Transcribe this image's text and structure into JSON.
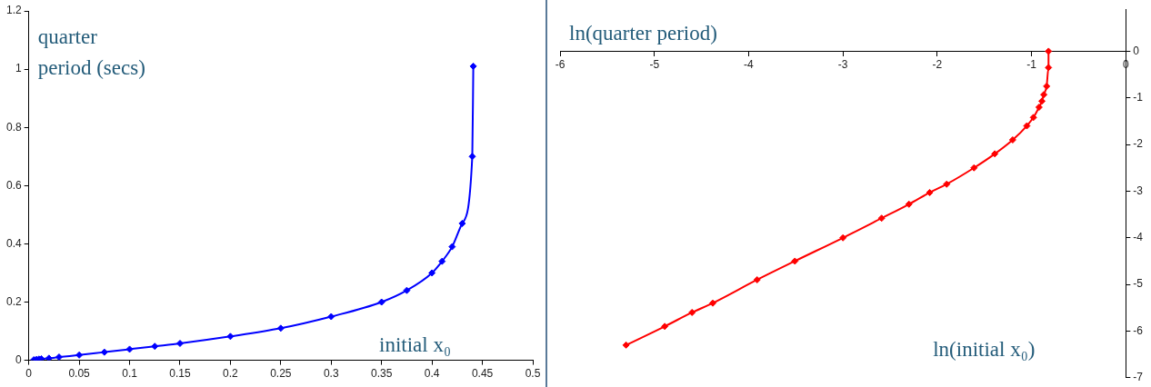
{
  "chart_data": [
    {
      "type": "line",
      "xlabel": "initial x₀",
      "ylabel": "quarter\nperiod (secs)",
      "xlim": [
        0,
        0.5
      ],
      "ylim": [
        0,
        1.2
      ],
      "xticks": [
        0,
        0.05,
        0.1,
        0.15,
        0.2,
        0.25,
        0.3,
        0.35,
        0.4,
        0.45,
        0.5
      ],
      "yticks": [
        0,
        0.2,
        0.4,
        0.6,
        0.8,
        1,
        1.2
      ],
      "grid": false,
      "legend": false,
      "marker": "diamond",
      "line_style": "solid",
      "series": [
        {
          "color": "#0000ff",
          "x": [
            0.005,
            0.0075,
            0.01,
            0.0125,
            0.02,
            0.03,
            0.05,
            0.075,
            0.1,
            0.125,
            0.15,
            0.2,
            0.25,
            0.3,
            0.35,
            0.375,
            0.4,
            0.41,
            0.42,
            0.43,
            0.44,
            0.441
          ],
          "values": [
            0.002,
            0.003,
            0.004,
            0.005,
            0.007,
            0.011,
            0.018,
            0.028,
            0.038,
            0.048,
            0.058,
            0.082,
            0.11,
            0.15,
            0.2,
            0.24,
            0.3,
            0.34,
            0.39,
            0.47,
            0.7,
            1.01
          ]
        }
      ]
    },
    {
      "type": "line",
      "xlabel": "ln(initial x₀)",
      "ylabel": "ln(quarter period)",
      "xlim": [
        -6,
        0
      ],
      "ylim": [
        -7,
        0.9
      ],
      "xticks": [
        -6,
        -5,
        -4,
        -3,
        -2,
        -1,
        0
      ],
      "yticks": [
        -7,
        -6,
        -5,
        -4,
        -3,
        -2,
        -1,
        0
      ],
      "grid": false,
      "legend": false,
      "marker": "diamond",
      "line_style": "solid",
      "series": [
        {
          "color": "#ff0000",
          "x": [
            -5.3,
            -4.89,
            -4.6,
            -4.38,
            -3.91,
            -3.51,
            -3.0,
            -2.59,
            -2.3,
            -2.08,
            -1.9,
            -1.61,
            -1.39,
            -1.2,
            -1.05,
            -0.98,
            -0.92,
            -0.89,
            -0.87,
            -0.84,
            -0.82,
            -0.82
          ],
          "values": [
            -6.3,
            -5.9,
            -5.6,
            -5.4,
            -4.9,
            -4.5,
            -4.0,
            -3.58,
            -3.28,
            -3.03,
            -2.85,
            -2.5,
            -2.2,
            -1.9,
            -1.6,
            -1.42,
            -1.2,
            -1.07,
            -0.93,
            -0.75,
            -0.35,
            0
          ]
        }
      ]
    }
  ]
}
